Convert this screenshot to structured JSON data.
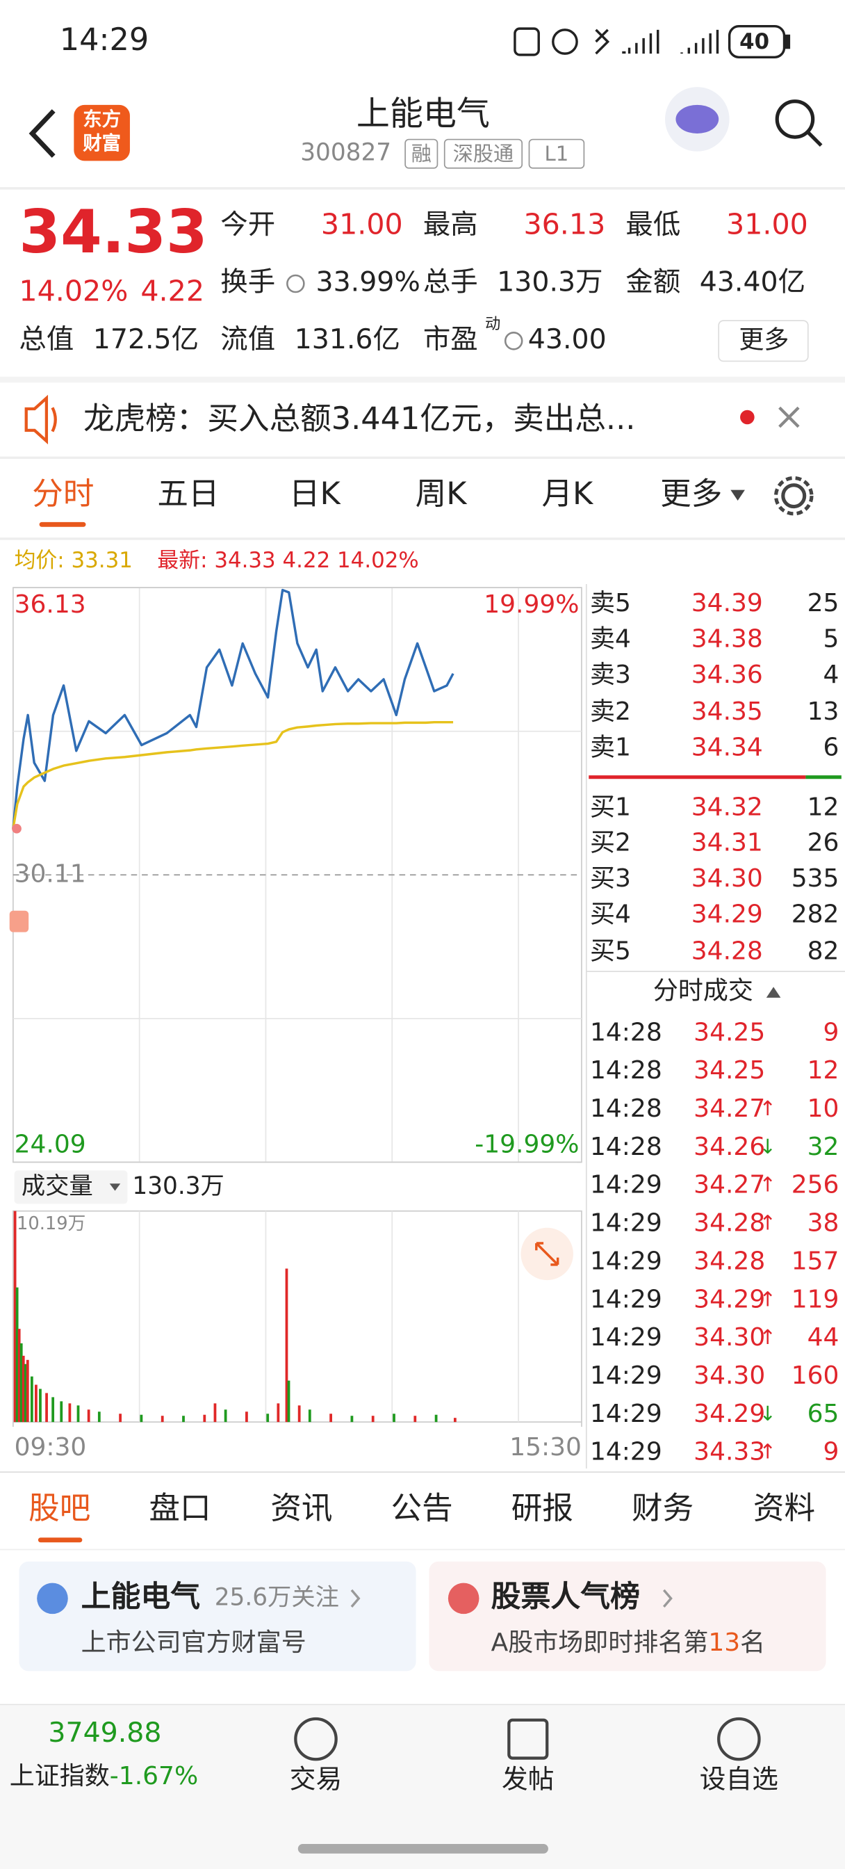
{
  "status_bar": {
    "time": "14:29",
    "battery": "40"
  },
  "header": {
    "logo_line1": "东方",
    "logo_line2": "财富",
    "title": "上能电气",
    "code": "300827",
    "tags": [
      "融",
      "深股通",
      "L1"
    ]
  },
  "quote": {
    "price": "34.33",
    "change_pct": "14.02%",
    "change": "4.22",
    "fields": [
      {
        "label": "今开",
        "value": "31.00"
      },
      {
        "label": "最高",
        "value": "36.13"
      },
      {
        "label": "最低",
        "value": "31.00"
      },
      {
        "label": "换手",
        "value": "33.99%"
      },
      {
        "label": "总手",
        "value": "130.3万"
      },
      {
        "label": "金额",
        "value": "43.40亿"
      },
      {
        "label": "总值",
        "value": "172.5亿"
      },
      {
        "label": "流值",
        "value": "131.6亿"
      },
      {
        "label": "市盈",
        "superscript": "动",
        "value": "43.00"
      }
    ],
    "more_button": "更多"
  },
  "notice": "龙虎榜：买入总额3.441亿元，卖出总...",
  "period_tabs": [
    "分时",
    "五日",
    "日K",
    "周K",
    "月K",
    "更多"
  ],
  "chart_info": {
    "avg": "均价: 33.31",
    "latest": "最新: 34.33 4.22 14.02%"
  },
  "chart_data": [
    {
      "type": "line",
      "x": [
        0,
        2,
        5,
        7,
        10,
        15,
        19,
        24,
        30,
        36,
        44,
        53,
        61,
        73,
        84,
        87,
        92,
        98,
        104,
        109,
        115,
        121,
        125,
        128,
        131,
        135,
        140,
        144,
        147,
        153,
        159,
        164,
        170,
        176,
        182,
        186,
        192,
        196,
        200,
        206,
        209
      ],
      "xlim": [
        0,
        270
      ],
      "xticks": [
        {
          "value": 0,
          "label": "09:30"
        },
        {
          "value": 270,
          "label": "15:30"
        }
      ],
      "xgrid": [
        60,
        120,
        180,
        240
      ],
      "ylim": [
        24.09,
        36.13
      ],
      "yticks": [
        36.13,
        30.11,
        24.09
      ],
      "ygrid": [
        33.12,
        27.1
      ],
      "y2lim": [
        -19.99,
        19.99
      ],
      "y2ticks": [
        {
          "value": 19.99,
          "label": "19.99%"
        },
        {
          "value": -19.99,
          "label": "-19.99%"
        }
      ],
      "series": [
        {
          "color": "#2f6db5",
          "values": [
            31.08,
            31.96,
            32.96,
            33.46,
            32.46,
            32.08,
            33.46,
            34.08,
            32.71,
            33.33,
            33.08,
            33.46,
            32.83,
            33.08,
            33.46,
            33.21,
            34.46,
            34.83,
            34.08,
            34.96,
            34.33,
            33.83,
            35.21,
            36.08,
            36.03,
            34.96,
            34.46,
            34.83,
            33.96,
            34.46,
            33.96,
            34.21,
            33.96,
            34.21,
            33.46,
            34.21,
            34.96,
            34.46,
            33.96,
            34.08,
            34.33
          ]
        },
        {
          "color": "#e6c21c",
          "values": [
            31.08,
            31.6,
            31.96,
            32.05,
            32.15,
            32.25,
            32.33,
            32.4,
            32.45,
            32.5,
            32.55,
            32.58,
            32.62,
            32.68,
            32.72,
            32.74,
            32.76,
            32.78,
            32.8,
            32.82,
            32.84,
            32.86,
            32.9,
            33.1,
            33.16,
            33.2,
            33.22,
            33.24,
            33.25,
            33.27,
            33.28,
            33.28,
            33.29,
            33.29,
            33.29,
            33.3,
            33.3,
            33.3,
            33.31,
            33.31,
            33.31
          ]
        }
      ]
    },
    {
      "type": "bar",
      "x": [
        0,
        1,
        2,
        3,
        4,
        5,
        6,
        8,
        10,
        12,
        15,
        18,
        22,
        26,
        30,
        35,
        40,
        50,
        60,
        70,
        80,
        90,
        95,
        100,
        110,
        120,
        125,
        129,
        130,
        135,
        140,
        150,
        160,
        170,
        180,
        190,
        200,
        209
      ],
      "values": [
        10.19,
        6.5,
        4.5,
        3.8,
        3.2,
        2.8,
        3.0,
        2.2,
        1.8,
        1.6,
        1.4,
        1.2,
        1.0,
        0.9,
        0.8,
        0.6,
        0.5,
        0.4,
        0.35,
        0.3,
        0.3,
        0.35,
        0.9,
        0.6,
        0.5,
        0.4,
        0.9,
        7.41,
        2.0,
        0.8,
        0.6,
        0.4,
        0.3,
        0.3,
        0.4,
        0.3,
        0.35,
        0.2
      ],
      "colors": [
        "#e02828",
        "#1f9a1f",
        "#e02828",
        "#1f9a1f",
        "#e02828",
        "#1f9a1f",
        "#e02828",
        "#1f9a1f",
        "#e02828",
        "#1f9a1f",
        "#e02828",
        "#1f9a1f",
        "#1f9a1f",
        "#e02828",
        "#1f9a1f",
        "#e02828",
        "#1f9a1f",
        "#e02828",
        "#1f9a1f",
        "#e02828",
        "#1f9a1f",
        "#e02828",
        "#e02828",
        "#1f9a1f",
        "#e02828",
        "#1f9a1f",
        "#e02828",
        "#e02828",
        "#1f9a1f",
        "#e02828",
        "#1f9a1f",
        "#e02828",
        "#1f9a1f",
        "#e02828",
        "#1f9a1f",
        "#e02828",
        "#1f9a1f",
        "#e02828"
      ],
      "xlim": [
        0,
        270
      ],
      "ylim": [
        0,
        10.19
      ],
      "yticks": [
        {
          "value": 10.19,
          "label": "10.19万"
        }
      ]
    }
  ],
  "volume_header": {
    "selector": "成交量",
    "total": "130.3万"
  },
  "order_book": {
    "asks": [
      {
        "label": "卖5",
        "price": "34.39",
        "volume": "25"
      },
      {
        "label": "卖4",
        "price": "34.38",
        "volume": "5"
      },
      {
        "label": "卖3",
        "price": "34.36",
        "volume": "4"
      },
      {
        "label": "卖2",
        "price": "34.35",
        "volume": "13"
      },
      {
        "label": "卖1",
        "price": "34.34",
        "volume": "6"
      }
    ],
    "bids": [
      {
        "label": "买1",
        "price": "34.32",
        "volume": "12"
      },
      {
        "label": "买2",
        "price": "34.31",
        "volume": "26"
      },
      {
        "label": "买3",
        "price": "34.30",
        "volume": "535"
      },
      {
        "label": "买4",
        "price": "34.29",
        "volume": "282"
      },
      {
        "label": "买5",
        "price": "34.28",
        "volume": "82"
      }
    ]
  },
  "trades": {
    "title": "分时成交",
    "rows": [
      {
        "time": "14:28",
        "price": "34.25",
        "volume": "9"
      },
      {
        "time": "14:28",
        "price": "34.25",
        "volume": "12"
      },
      {
        "time": "14:28",
        "price": "34.27",
        "arrow": "↑",
        "volume": "10"
      },
      {
        "time": "14:28",
        "price": "34.26",
        "arrow": "↓",
        "volume": "32"
      },
      {
        "time": "14:29",
        "price": "34.27",
        "arrow": "↑",
        "volume": "256"
      },
      {
        "time": "14:29",
        "price": "34.28",
        "arrow": "↑",
        "volume": "38"
      },
      {
        "time": "14:29",
        "price": "34.28",
        "volume": "157"
      },
      {
        "time": "14:29",
        "price": "34.29",
        "arrow": "↑",
        "volume": "119"
      },
      {
        "time": "14:29",
        "price": "34.30",
        "arrow": "↑",
        "volume": "44"
      },
      {
        "time": "14:29",
        "price": "34.30",
        "volume": "160"
      },
      {
        "time": "14:29",
        "price": "34.29",
        "arrow": "↓",
        "volume": "65"
      },
      {
        "time": "14:29",
        "price": "34.33",
        "arrow": "↑",
        "volume": "9"
      }
    ]
  },
  "bottom_tabs": [
    "股吧",
    "盘口",
    "资讯",
    "公告",
    "研报",
    "财务",
    "资料"
  ],
  "cards": [
    {
      "title": "上能电气",
      "meta": "25.6万关注",
      "subtitle": "上市公司官方财富号"
    },
    {
      "title": "股票人气榜",
      "subtitle_parts": [
        "A股市场即时排名第",
        "13",
        "名"
      ]
    }
  ],
  "index": {
    "value": "3749.88",
    "name": "上证指数",
    "change": "-1.67%"
  },
  "nav": [
    "交易",
    "发帖",
    "设自选"
  ]
}
